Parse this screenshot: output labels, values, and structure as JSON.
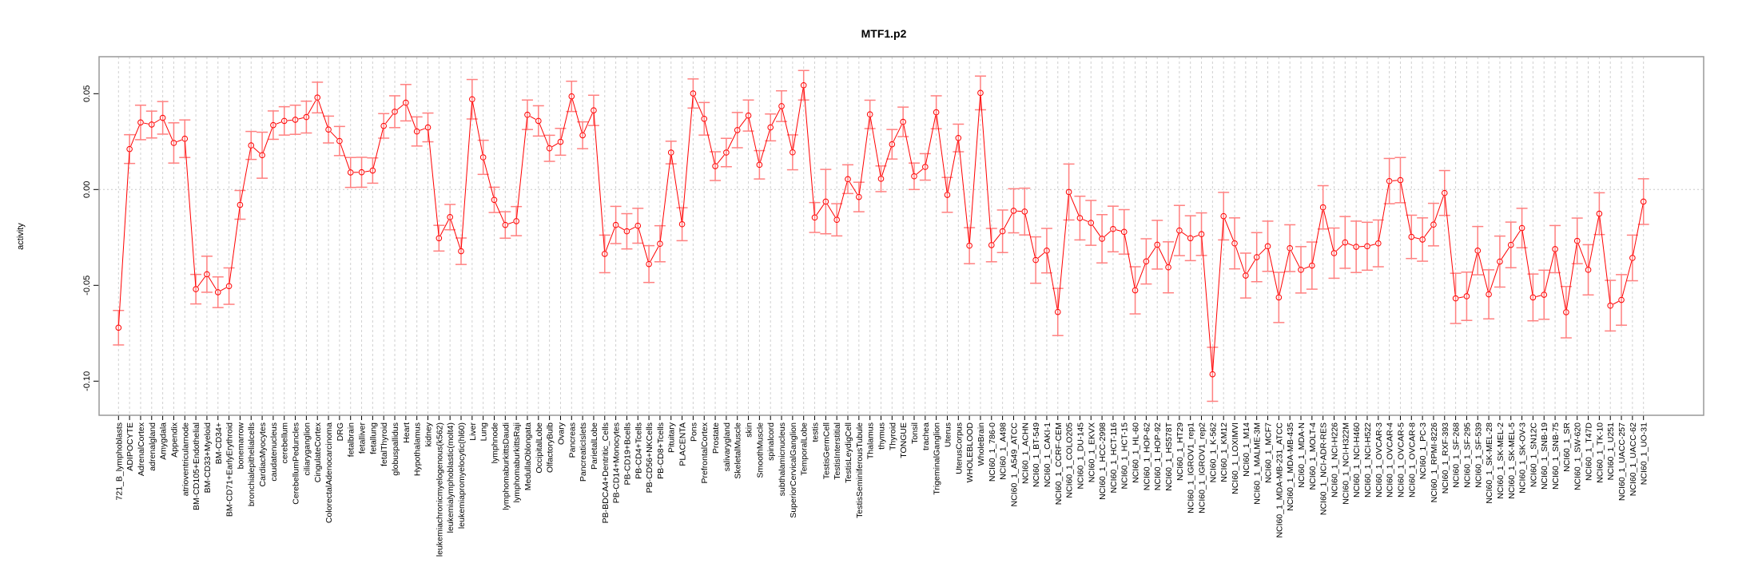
{
  "chart_data": {
    "type": "line",
    "title": "MTF1.p2",
    "xlabel": "",
    "ylabel": "activity",
    "ylim": [
      -0.1178,
      0.0693
    ],
    "yticks": [
      0.05,
      0.0,
      -0.05,
      -0.1
    ],
    "ytick_labels": [
      "0.05",
      "0.00",
      "-0.05",
      "-0.10"
    ],
    "grid": "vertical dashed per category, horizontal dotted at 0",
    "colors": {
      "line": "#ff0000",
      "errorbar": "#ff8080",
      "grid": "#d0d0d0",
      "frame": "#999999"
    },
    "categories": [
      "721_B_lymphoblasts",
      "ADIPOCYTE",
      "AdrenalCortex",
      "adrenalgland",
      "Amygdala",
      "Appendix",
      "atrioventricularnode",
      "BM-CD105+Endothelial",
      "BM-CD33+Myeloid",
      "BM-CD34+",
      "BM-CD71+EarlyErythroid",
      "bonemarrow",
      "bronchialepithelialcells",
      "CardiacMyocytes",
      "caudatenucleus",
      "cerebellum",
      "CerebellumPeduncles",
      "ciliaryganglion",
      "CingulateCortex",
      "ColorectalAdenocarcinoma",
      "DRG",
      "fetalbrain",
      "fetalliver",
      "fetallung",
      "fetalThyroid",
      "globuspallidus",
      "Heart",
      "Hypothalamus",
      "kidney",
      "leukemiachronicmyelogenous(k562)",
      "leukemialymphoblastic(molt4)",
      "leukemiapromyelocytic(hl60)",
      "Liver",
      "Lung",
      "lymphnode",
      "lymphomaburkittsDaudi",
      "lymphomaburkittsRaji",
      "MedullaOblongata",
      "OccipitalLobe",
      "OlfactoryBulb",
      "Ovary",
      "Pancreas",
      "PancreaticIslets",
      "ParietalLobe",
      "PB-BDCA4+Dentritic_Cells",
      "PB-CD14+Monocytes",
      "PB-CD19+Bcells",
      "PB-CD4+Tcells",
      "PB-CD56+NKCells",
      "PB-CD8+Tcells",
      "Pituitary",
      "PLACENTA",
      "Pons",
      "PrefrontalCortex",
      "Prostate",
      "salivarygland",
      "SkeletalMuscle",
      "skin",
      "SmoothMuscle",
      "spinalcord",
      "subthalamicnucleus",
      "SuperiorCervicalGanglion",
      "TemporalLobe",
      "testis",
      "TestisGermCell",
      "TestisInterstitial",
      "TestisLeydigCell",
      "TestisSeminiferousTubule",
      "Thalamus",
      "thymus",
      "Thyroid",
      "TONGUE",
      "Tonsil",
      "trachea",
      "TrigeminalGanglion",
      "Uterus",
      "UterusCorpus",
      "WHOLEBLOOD",
      "WholeBrain",
      "NCI60_1_786-0",
      "NCI60_1_A498",
      "NCI60_1_A549_ATCC",
      "NCI60_1_ACHN",
      "NCI60_1_BT-549",
      "NCI60_1_CAKI-1",
      "NCI60_1_CCRF-CEM",
      "NCI60_1_COLO205",
      "NCI60_1_DU-145",
      "NCI60_1_EKVX",
      "NCI60_1_HCC-2998",
      "NCI60_1_HCT-116",
      "NCI60_1_HCT-15",
      "NCI60_1_HL-60",
      "NCI60_1_HOP-62",
      "NCI60_1_HOP-92",
      "NCI60_1_HS578T",
      "NCI60_1_HT29",
      "NCI60_1_IGROV1_rep1",
      "NCI60_1_IGROV1_rep2",
      "NCI60_1_K-562",
      "NCI60_1_KM12",
      "NCI60_1_LOXIMVI",
      "NCI60_1_M14",
      "NCI60_1_MALME-3M",
      "NCI60_1_MCF7",
      "NCI60_1_MDA-MB-231_ATCC",
      "NCI60_1_MDA-MB-435",
      "NCI60_1_MDA-N",
      "NCI60_1_MOLT-4",
      "NCI60_1_NCI-ADR-RES",
      "NCI60_1_NCI-H226",
      "NCI60_1_NCI-H322M",
      "NCI60_1_NCI-H460",
      "NCI60_1_NCI-H522",
      "NCI60_1_OVCAR-3",
      "NCI60_1_OVCAR-4",
      "NCI60_1_OVCAR-5",
      "NCI60_1_OVCAR-8",
      "NCI60_1_PC-3",
      "NCI60_1_RPMI-8226",
      "NCI60_1_RXF-393",
      "NCI60_1_SF-268",
      "NCI60_1_SF-295",
      "NCI60_1_SF-539",
      "NCI60_1_SK-MEL-28",
      "NCI60_1_SK-MEL-2",
      "NCI60_1_SK-MEL-5",
      "NCI60_1_SK-OV-3",
      "NCI60_1_SN12C",
      "NCI60_1_SNB-19",
      "NCI60_1_SNB-75",
      "NCI60_1_SR",
      "NCI60_1_SW-620",
      "NCI60_1_T47D",
      "NCI60_1_TK-10",
      "NCI60_1_U251",
      "NCI60_1_UACC-257",
      "NCI60_1_UACC-62",
      "NCI60_1_UO-31"
    ],
    "values": [
      -0.0721,
      0.0211,
      0.035,
      0.0339,
      0.0374,
      0.0243,
      0.0265,
      -0.052,
      -0.0442,
      -0.0536,
      -0.0504,
      -0.008,
      0.023,
      0.0179,
      0.0336,
      0.0358,
      0.0364,
      0.0378,
      0.048,
      0.0313,
      0.0253,
      0.0089,
      0.009,
      0.0099,
      0.0332,
      0.0406,
      0.0453,
      0.0303,
      0.0324,
      -0.0254,
      -0.0144,
      -0.0322,
      0.0471,
      0.0168,
      -0.0054,
      -0.0185,
      -0.0165,
      0.039,
      0.0358,
      0.0215,
      0.0249,
      0.0486,
      0.0283,
      0.0413,
      -0.0336,
      -0.0185,
      -0.0218,
      -0.0189,
      -0.0389,
      -0.0283,
      0.0193,
      -0.0181,
      0.0501,
      0.0369,
      0.0122,
      0.0193,
      0.031,
      0.0386,
      0.0129,
      0.0324,
      0.0435,
      0.0194,
      0.0544,
      -0.0146,
      -0.0063,
      -0.0158,
      0.0054,
      -0.0039,
      0.0392,
      0.0056,
      0.0236,
      0.0353,
      0.0069,
      0.0118,
      0.0403,
      -0.0028,
      0.0269,
      -0.0293,
      0.0504,
      -0.029,
      -0.0218,
      -0.0111,
      -0.0115,
      -0.0368,
      -0.0319,
      -0.0639,
      -0.0013,
      -0.0149,
      -0.0174,
      -0.0257,
      -0.0206,
      -0.0221,
      -0.0526,
      -0.0375,
      -0.0288,
      -0.0406,
      -0.0214,
      -0.0254,
      -0.0233,
      -0.0964,
      -0.0139,
      -0.0281,
      -0.0449,
      -0.0353,
      -0.0296,
      -0.0563,
      -0.0306,
      -0.0419,
      -0.0397,
      -0.0093,
      -0.0332,
      -0.0276,
      -0.0299,
      -0.0296,
      -0.0281,
      0.0044,
      0.0049,
      -0.0247,
      -0.0261,
      -0.0183,
      -0.0018,
      -0.0568,
      -0.0557,
      -0.0319,
      -0.0547,
      -0.0376,
      -0.0289,
      -0.0201,
      -0.0563,
      -0.0549,
      -0.0311,
      -0.064,
      -0.0268,
      -0.0419,
      -0.0126,
      -0.0606,
      -0.0576,
      -0.0357,
      -0.0063
    ],
    "errors": [
      0.009,
      0.0075,
      0.009,
      0.007,
      0.0085,
      0.0105,
      0.0098,
      0.0077,
      0.0094,
      0.008,
      0.0095,
      0.0075,
      0.0073,
      0.012,
      0.0074,
      0.0074,
      0.0076,
      0.0083,
      0.008,
      0.007,
      0.0076,
      0.0078,
      0.0078,
      0.0066,
      0.0064,
      0.0083,
      0.0095,
      0.0076,
      0.0075,
      0.0067,
      0.0066,
      0.0069,
      0.0103,
      0.0089,
      0.0066,
      0.0069,
      0.0076,
      0.0077,
      0.0079,
      0.0068,
      0.007,
      0.0079,
      0.007,
      0.0079,
      0.0098,
      0.0097,
      0.0092,
      0.0091,
      0.0096,
      0.0094,
      0.0059,
      0.0086,
      0.0076,
      0.0085,
      0.0075,
      0.0074,
      0.0092,
      0.0081,
      0.0074,
      0.007,
      0.008,
      0.0091,
      0.0077,
      0.0078,
      0.0168,
      0.0084,
      0.0075,
      0.0077,
      0.0074,
      0.0067,
      0.0077,
      0.0077,
      0.0069,
      0.0069,
      0.0086,
      0.0091,
      0.0072,
      0.0094,
      0.0088,
      0.0087,
      0.0111,
      0.0115,
      0.0122,
      0.0121,
      0.0116,
      0.0123,
      0.0146,
      0.0114,
      0.0117,
      0.0126,
      0.0119,
      0.0116,
      0.0123,
      0.0118,
      0.0127,
      0.0133,
      0.0131,
      0.0117,
      0.0111,
      0.0141,
      0.0124,
      0.0133,
      0.0117,
      0.0128,
      0.0131,
      0.0131,
      0.0122,
      0.0121,
      0.0123,
      0.0113,
      0.0131,
      0.0135,
      0.0134,
      0.0125,
      0.0122,
      0.0118,
      0.0118,
      0.0113,
      0.0113,
      0.0111,
      0.0117,
      0.0131,
      0.0126,
      0.0126,
      0.0128,
      0.0133,
      0.0119,
      0.0103,
      0.0122,
      0.0128,
      0.0123,
      0.0134,
      0.0119,
      0.0131,
      0.0109,
      0.0132,
      0.0132,
      0.0119,
      0.0119
    ]
  }
}
